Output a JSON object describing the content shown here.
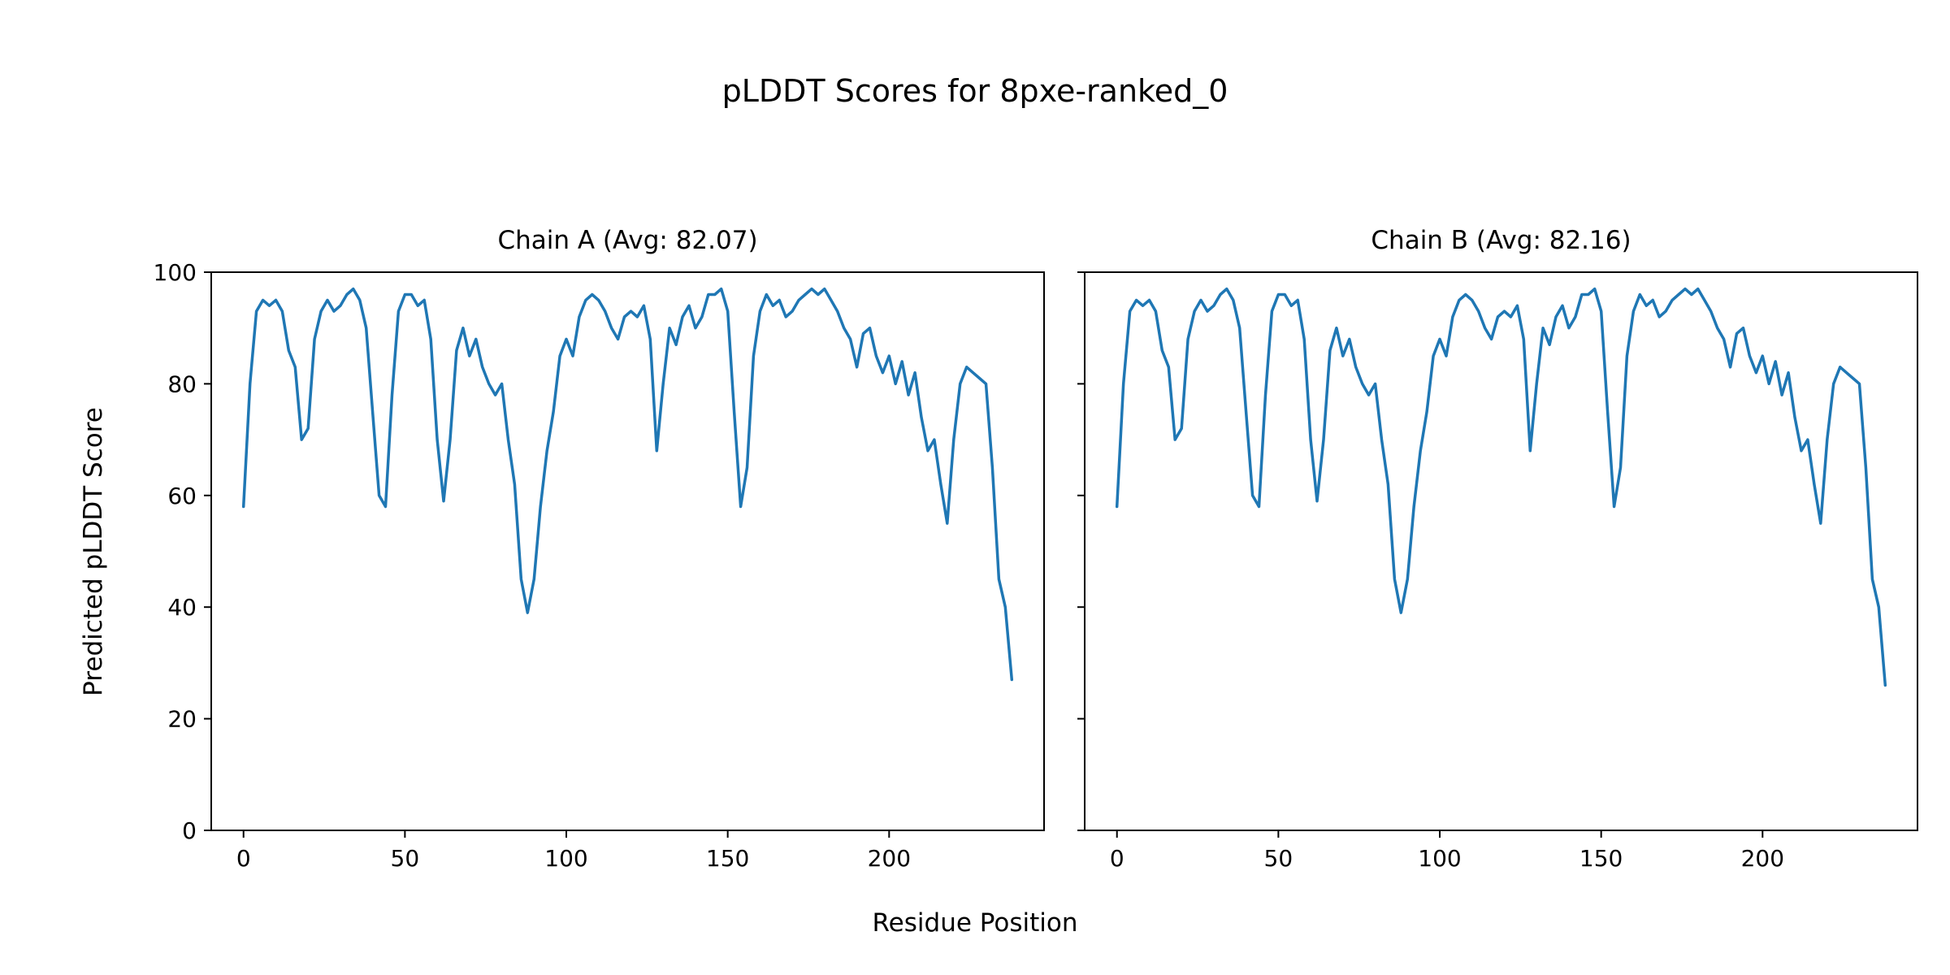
{
  "figure": {
    "title": "pLDDT Scores for 8pxe-ranked_0",
    "xlabel": "Residue Position",
    "ylabel": "Predicted pLDDT Score"
  },
  "chart_data": [
    {
      "type": "line",
      "title": "Chain A (Avg: 82.07)",
      "avg": 82.07,
      "line_color": "#1f77b4",
      "xlim": [
        -10,
        248
      ],
      "ylim": [
        0,
        100
      ],
      "xticks": [
        0,
        50,
        100,
        150,
        200
      ],
      "yticks": [
        0,
        20,
        40,
        60,
        80,
        100
      ],
      "show_ytick_labels": true,
      "x_start": 0,
      "x_step": 2,
      "values": [
        58,
        80,
        93,
        95,
        94,
        95,
        93,
        86,
        83,
        70,
        72,
        88,
        93,
        95,
        93,
        94,
        96,
        97,
        95,
        90,
        75,
        60,
        58,
        78,
        93,
        96,
        96,
        94,
        95,
        88,
        70,
        59,
        70,
        86,
        90,
        85,
        88,
        83,
        80,
        78,
        80,
        70,
        62,
        45,
        39,
        45,
        58,
        68,
        75,
        85,
        88,
        85,
        92,
        95,
        96,
        95,
        93,
        90,
        88,
        92,
        93,
        92,
        94,
        88,
        68,
        80,
        90,
        87,
        92,
        94,
        90,
        92,
        96,
        96,
        97,
        93,
        75,
        58,
        65,
        85,
        93,
        96,
        94,
        95,
        92,
        93,
        95,
        96,
        97,
        96,
        97,
        95,
        93,
        90,
        88,
        83,
        89,
        90,
        85,
        82,
        85,
        80,
        84,
        78,
        82,
        74,
        68,
        70,
        62,
        55,
        70,
        80,
        83,
        82,
        81,
        80,
        65,
        45,
        40,
        27
      ]
    },
    {
      "type": "line",
      "title": "Chain B (Avg: 82.16)",
      "avg": 82.16,
      "line_color": "#1f77b4",
      "xlim": [
        -10,
        248
      ],
      "ylim": [
        0,
        100
      ],
      "xticks": [
        0,
        50,
        100,
        150,
        200
      ],
      "yticks": [
        0,
        20,
        40,
        60,
        80,
        100
      ],
      "show_ytick_labels": false,
      "x_start": 0,
      "x_step": 2,
      "values": [
        58,
        80,
        93,
        95,
        94,
        95,
        93,
        86,
        83,
        70,
        72,
        88,
        93,
        95,
        93,
        94,
        96,
        97,
        95,
        90,
        75,
        60,
        58,
        78,
        93,
        96,
        96,
        94,
        95,
        88,
        70,
        59,
        70,
        86,
        90,
        85,
        88,
        83,
        80,
        78,
        80,
        70,
        62,
        45,
        39,
        45,
        58,
        68,
        75,
        85,
        88,
        85,
        92,
        95,
        96,
        95,
        93,
        90,
        88,
        92,
        93,
        92,
        94,
        88,
        68,
        80,
        90,
        87,
        92,
        94,
        90,
        92,
        96,
        96,
        97,
        93,
        75,
        58,
        65,
        85,
        93,
        96,
        94,
        95,
        92,
        93,
        95,
        96,
        97,
        96,
        97,
        95,
        93,
        90,
        88,
        83,
        89,
        90,
        85,
        82,
        85,
        80,
        84,
        78,
        82,
        74,
        68,
        70,
        62,
        55,
        70,
        80,
        83,
        82,
        81,
        80,
        65,
        45,
        40,
        26
      ]
    }
  ]
}
